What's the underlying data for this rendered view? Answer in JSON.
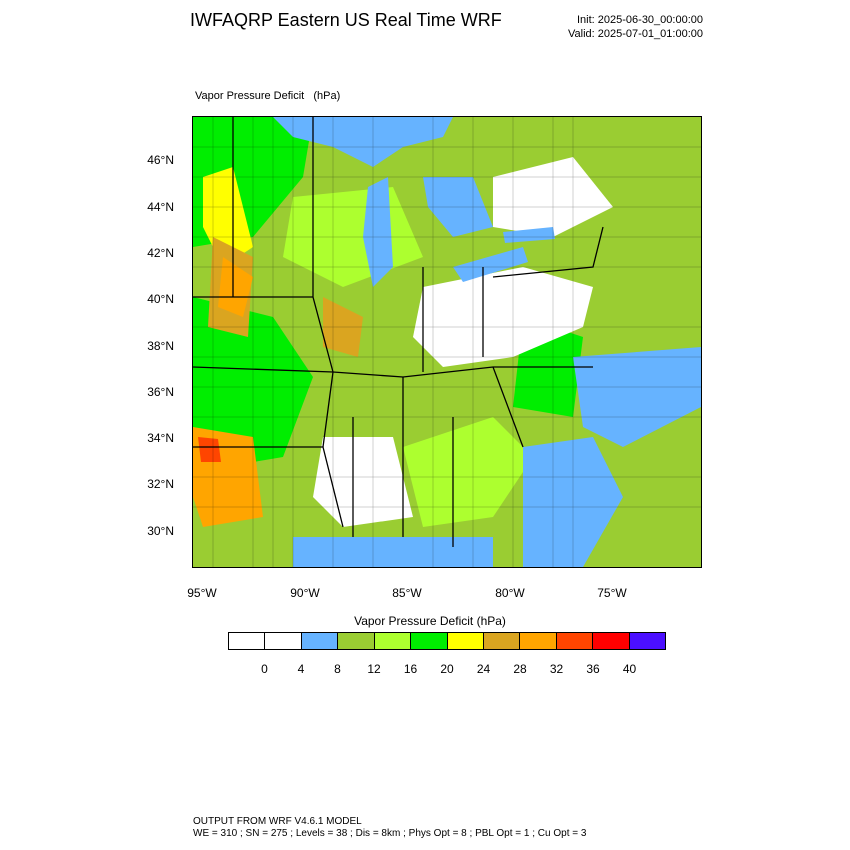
{
  "header": {
    "title": "IWFAQRP Eastern US Real Time WRF",
    "init": "Init: 2025-06-30_00:00:00",
    "valid": "Valid: 2025-07-01_01:00:00"
  },
  "panel": {
    "label": "Vapor Pressure Deficit   (hPa)"
  },
  "map": {
    "lat_labels": [
      "46°N",
      "44°N",
      "42°N",
      "40°N",
      "38°N",
      "36°N",
      "34°N",
      "32°N",
      "30°N"
    ],
    "lon_labels": [
      "95°W",
      "90°W",
      "85°W",
      "80°W",
      "75°W"
    ],
    "colors": {
      "water": "#66b3ff",
      "land_base": "#9acd32",
      "boundary": "#000000"
    }
  },
  "legend": {
    "title": "Vapor Pressure Deficit  (hPa)",
    "ticks": [
      "0",
      "4",
      "8",
      "12",
      "16",
      "20",
      "24",
      "28",
      "32",
      "36",
      "40"
    ],
    "colors": [
      "#ffffff",
      "#ffffff",
      "#66b3ff",
      "#9acd32",
      "#adff2f",
      "#00ee00",
      "#ffff00",
      "#daa520",
      "#ffa500",
      "#ff4500",
      "#ff0000",
      "#4b0fff"
    ]
  },
  "footer": {
    "line1": "OUTPUT FROM WRF V4.6.1 MODEL",
    "line2": "WE = 310 ; SN = 275 ; Levels = 38 ; Dis = 8km ; Phys Opt = 8 ; PBL Opt = 1 ; Cu Opt = 3"
  }
}
